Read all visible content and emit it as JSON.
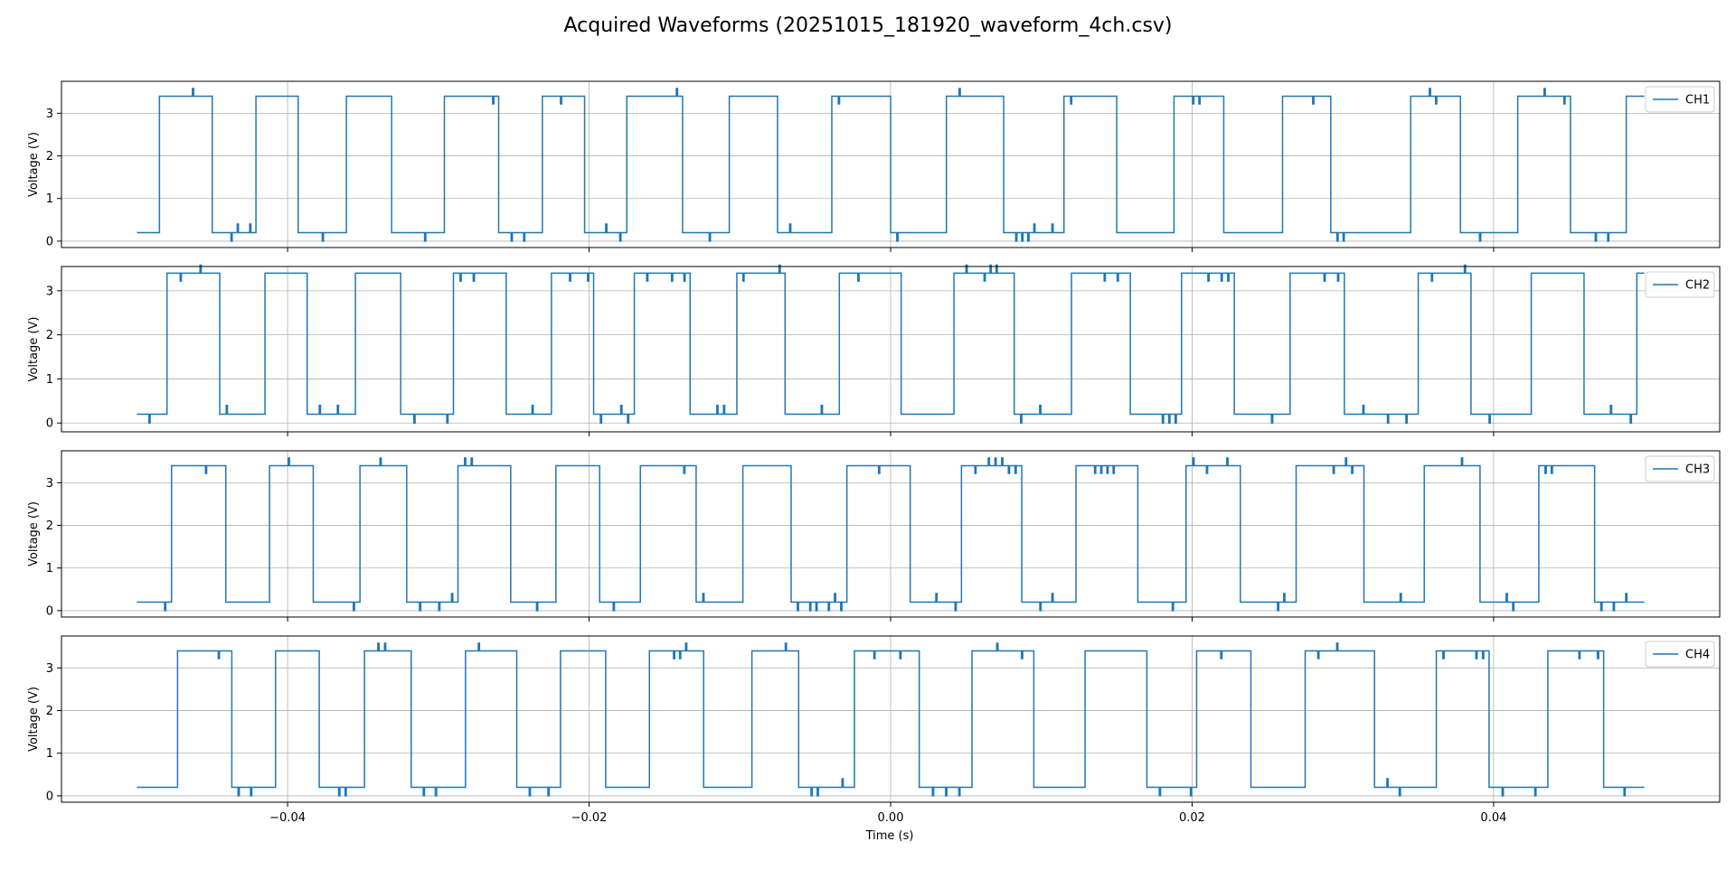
{
  "figure": {
    "title": "Acquired Waveforms (20251015_181920_waveform_4ch.csv)",
    "line_color": "#1f77b4",
    "grid_color": "#b0b0b0"
  },
  "chart_data": {
    "type": "line",
    "title": "Acquired Waveforms (20251015_181920_waveform_4ch.csv)",
    "xlabel": "Time (s)",
    "ylabel": "Voltage (V)",
    "xlim": [
      -0.055,
      0.055
    ],
    "x_ticks": [
      -0.04,
      -0.02,
      0.0,
      0.02,
      0.04
    ],
    "x_tick_labels": [
      "−0.04",
      "−0.02",
      "0.00",
      "0.02",
      "0.04"
    ],
    "y_ticks": [
      0,
      1,
      2,
      3
    ],
    "grid": true,
    "legend_position": "upper-right",
    "t_start": -0.05,
    "t_end": 0.05,
    "low_level": 0.2,
    "high_level": 3.4,
    "series": [
      {
        "name": "CH1",
        "ylim": [
          -0.15,
          3.75
        ],
        "rising_edges": [
          -0.0485,
          -0.0421,
          -0.0361,
          -0.0296,
          -0.0231,
          -0.0175,
          -0.0107,
          -0.0039,
          0.0037,
          0.0115,
          0.0188,
          0.026,
          0.0345,
          0.0416,
          0.0488
        ],
        "falling_edges": [
          -0.045,
          -0.0393,
          -0.0331,
          -0.026,
          -0.0203,
          -0.0138,
          -0.0075,
          0.0,
          0.0075,
          0.015,
          0.0221,
          0.0292,
          0.0378,
          0.0451
        ]
      },
      {
        "name": "CH2",
        "ylim": [
          -0.2,
          3.55
        ],
        "rising_edges": [
          -0.048,
          -0.0415,
          -0.0355,
          -0.029,
          -0.0225,
          -0.017,
          -0.0102,
          -0.0034,
          0.0042,
          0.012,
          0.0193,
          0.0265,
          0.035,
          0.0425,
          0.0495
        ],
        "falling_edges": [
          -0.0445,
          -0.0387,
          -0.0325,
          -0.0255,
          -0.0197,
          -0.0133,
          -0.007,
          0.0007,
          0.0082,
          0.0159,
          0.0228,
          0.0301,
          0.0385,
          0.046
        ]
      },
      {
        "name": "CH3",
        "ylim": [
          -0.15,
          3.75
        ],
        "rising_edges": [
          -0.0477,
          -0.0412,
          -0.0352,
          -0.0287,
          -0.0222,
          -0.0166,
          -0.0098,
          -0.0029,
          0.0047,
          0.0123,
          0.0196,
          0.0269,
          0.0354,
          0.043
        ],
        "falling_edges": [
          -0.0441,
          -0.0383,
          -0.0321,
          -0.0252,
          -0.0193,
          -0.0129,
          -0.0066,
          0.0013,
          0.0087,
          0.0164,
          0.0232,
          0.0314,
          0.0391,
          0.0467
        ]
      },
      {
        "name": "CH4",
        "ylim": [
          -0.15,
          3.75
        ],
        "rising_edges": [
          -0.0473,
          -0.0408,
          -0.0349,
          -0.0282,
          -0.0219,
          -0.016,
          -0.0092,
          -0.0024,
          0.0054,
          0.0129,
          0.0203,
          0.0275,
          0.0362,
          0.0436
        ],
        "falling_edges": [
          -0.0437,
          -0.0379,
          -0.0318,
          -0.0248,
          -0.0189,
          -0.0124,
          -0.0061,
          0.0019,
          0.0095,
          0.017,
          0.0239,
          0.0321,
          0.0397,
          0.0473
        ]
      }
    ]
  }
}
